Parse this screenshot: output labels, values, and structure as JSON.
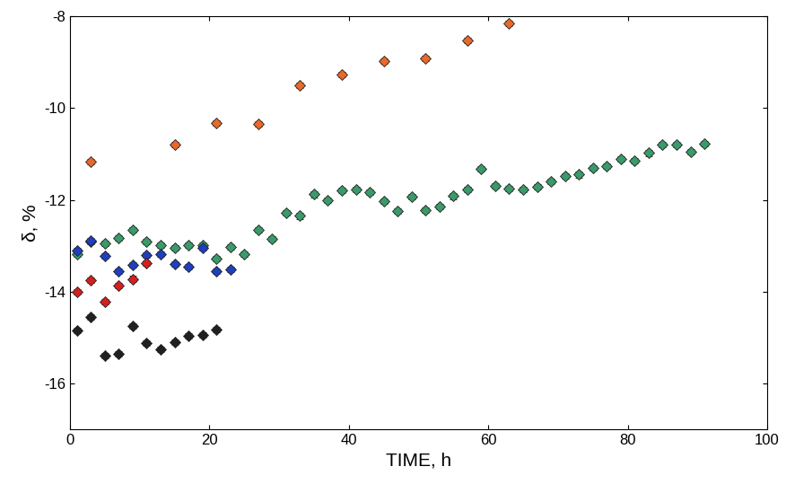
{
  "chart_data": {
    "type": "scatter",
    "x_label": "TIME, h",
    "y_label": "δ, %",
    "xlim": [
      0,
      100
    ],
    "xticks": [
      0,
      20,
      40,
      60,
      80,
      100
    ],
    "ylim": [
      -17,
      -8
    ],
    "yticks": [
      -16,
      -14,
      -12,
      -10,
      -8
    ],
    "grid": false,
    "marker": "diamond",
    "series": [
      {
        "color": "#e8692a",
        "error": 0.06,
        "x": [
          3,
          15,
          21,
          27,
          33,
          39,
          45,
          51,
          57,
          63
        ],
        "values": [
          -11.17,
          -10.8,
          -10.33,
          -10.35,
          -9.5,
          -9.27,
          -8.98,
          -8.92,
          -8.53,
          -8.15
        ]
      },
      {
        "color": "#3a9a6a",
        "error": 0.06,
        "x": [
          1,
          3,
          5,
          7,
          9,
          11,
          13,
          15,
          17,
          19,
          21,
          23,
          25,
          27,
          29,
          31,
          33,
          35,
          37,
          39,
          41,
          43,
          45,
          47,
          49,
          51,
          53,
          55,
          57,
          59,
          61,
          63,
          65,
          67,
          69,
          71,
          73,
          75,
          77,
          79,
          81,
          83,
          85,
          87,
          89,
          91
        ],
        "values": [
          -13.18,
          -12.9,
          -12.95,
          -12.83,
          -12.65,
          -12.9,
          -12.98,
          -13.05,
          -12.98,
          -12.98,
          -13.28,
          -13.02,
          -13.18,
          -12.65,
          -12.85,
          -12.28,
          -12.35,
          -11.88,
          -12.0,
          -11.8,
          -11.77,
          -11.83,
          -12.02,
          -12.25,
          -11.93,
          -12.22,
          -12.15,
          -11.92,
          -11.78,
          -11.32,
          -11.7,
          -11.75,
          -11.77,
          -11.72,
          -11.6,
          -11.48,
          -11.45,
          -11.3,
          -11.27,
          -11.1,
          -11.15,
          -10.98,
          -10.8,
          -10.8,
          -10.95,
          -10.78
        ]
      },
      {
        "color": "#1f3fbf",
        "error": 0.06,
        "x": [
          1,
          3,
          5,
          7,
          9,
          11,
          13,
          15,
          17,
          19,
          21,
          23
        ],
        "values": [
          -13.1,
          -12.88,
          -13.22,
          -13.55,
          -13.42,
          -13.2,
          -13.18,
          -13.4,
          -13.45,
          -13.05,
          -13.55,
          -13.52
        ]
      },
      {
        "color": "#d42020",
        "error": 0.06,
        "x": [
          1,
          3,
          5,
          7,
          9,
          11
        ],
        "values": [
          -14.0,
          -13.75,
          -14.22,
          -13.87,
          -13.72,
          -13.37
        ]
      },
      {
        "color": "#202020",
        "error": 0.06,
        "x": [
          1,
          3,
          5,
          7,
          9,
          11,
          13,
          15,
          17,
          19,
          21
        ],
        "values": [
          -14.85,
          -14.55,
          -15.4,
          -15.35,
          -14.75,
          -15.12,
          -15.25,
          -15.1,
          -14.97,
          -14.95,
          -14.82
        ]
      }
    ]
  }
}
